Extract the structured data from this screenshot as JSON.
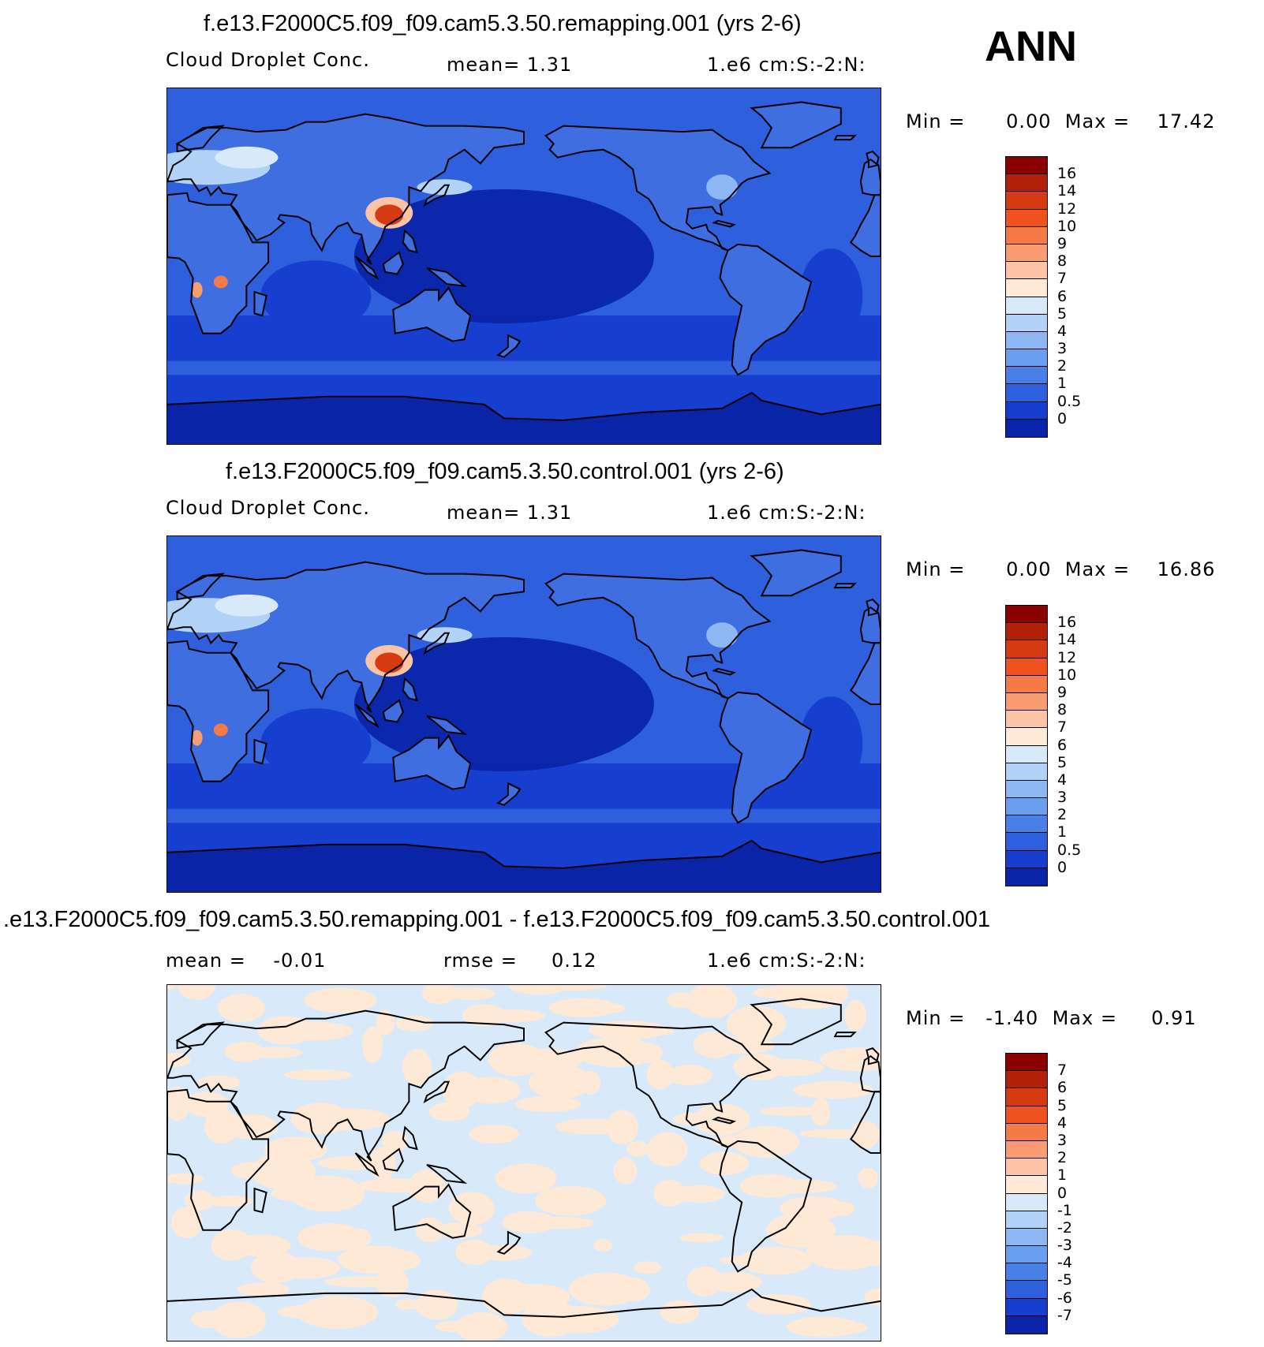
{
  "season": "ANN",
  "panels": [
    {
      "id": "remapping",
      "title": "f.e13.F2000C5.f09_f09.cam5.3.50.remapping.001 (yrs 2-6)",
      "left_text": "Cloud Droplet Conc.",
      "mid_text": "mean=    1.31",
      "right_text": "1.e6 cm:S:-2:N:",
      "min_max": "Min =      0.00  Max =    17.42",
      "legend": {
        "labels": [
          "16",
          "14",
          "12",
          "10",
          "9",
          "8",
          "7",
          "6",
          "5",
          "4",
          "3",
          "2",
          "1",
          "0.5",
          "0"
        ],
        "colors": [
          "#8b0000",
          "#b3200a",
          "#d63a10",
          "#f0521f",
          "#f57a45",
          "#f99c72",
          "#fcc3a4",
          "#fde9d6",
          "#d8e9fa",
          "#b3d2f7",
          "#8db8f3",
          "#6a9eee",
          "#4a7fe6",
          "#2e5fdc",
          "#163fcf",
          "#0a24a8"
        ]
      },
      "field": "mean"
    },
    {
      "id": "control",
      "title": "f.e13.F2000C5.f09_f09.cam5.3.50.control.001 (yrs 2-6)",
      "left_text": "Cloud Droplet Conc.",
      "mid_text": "mean=    1.31",
      "right_text": "1.e6 cm:S:-2:N:",
      "min_max": "Min =      0.00  Max =    16.86",
      "legend": {
        "labels": [
          "16",
          "14",
          "12",
          "10",
          "9",
          "8",
          "7",
          "6",
          "5",
          "4",
          "3",
          "2",
          "1",
          "0.5",
          "0"
        ],
        "colors": [
          "#8b0000",
          "#b3200a",
          "#d63a10",
          "#f0521f",
          "#f57a45",
          "#f99c72",
          "#fcc3a4",
          "#fde9d6",
          "#d8e9fa",
          "#b3d2f7",
          "#8db8f3",
          "#6a9eee",
          "#4a7fe6",
          "#2e5fdc",
          "#163fcf",
          "#0a24a8"
        ]
      },
      "field": "mean"
    },
    {
      "id": "difference",
      "title": ".e13.F2000C5.f09_f09.cam5.3.50.remapping.001 - f.e13.F2000C5.f09_f09.cam5.3.50.control.001",
      "left_text": "mean =    -0.01",
      "mid_text": "rmse =     0.12",
      "right_text": "1.e6 cm:S:-2:N:",
      "min_max": "Min =   -1.40  Max =     0.91",
      "legend": {
        "labels": [
          "7",
          "6",
          "5",
          "4",
          "3",
          "2",
          "1",
          "0",
          "-1",
          "-2",
          "-3",
          "-4",
          "-5",
          "-6",
          "-7"
        ],
        "colors": [
          "#8b0000",
          "#b3200a",
          "#d63a10",
          "#f0521f",
          "#f57a45",
          "#f99c72",
          "#fcc3a4",
          "#fde9d6",
          "#d8e9fa",
          "#b3d2f7",
          "#8db8f3",
          "#6a9eee",
          "#4a7fe6",
          "#2e5fdc",
          "#163fcf",
          "#0a24a8"
        ]
      },
      "field": "diff"
    }
  ],
  "colors": {
    "ocean_deep": "#0a24a8",
    "ocean_mid": "#163fcf",
    "ocean_light": "#2e5fdc",
    "diff_pos": "#fde9d6",
    "diff_neg": "#d8e9fa",
    "hotspot": "#d63a10",
    "coast": "#000000"
  }
}
